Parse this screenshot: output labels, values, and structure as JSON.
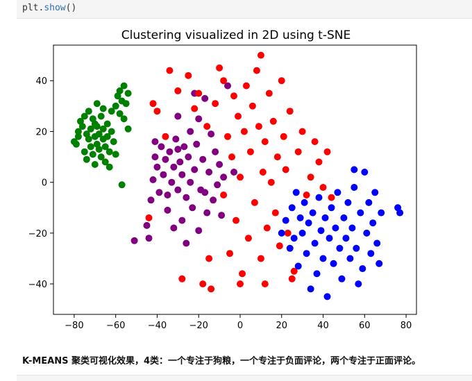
{
  "code_cell": {
    "obj": "plt",
    "dot": ".",
    "fn": "show",
    "parens": "()"
  },
  "markdown": {
    "text": "K-MEANS 聚类可视化效果，4类：一个专注于狗粮，一个专注于负面评论，两个专注于正面评论。"
  },
  "chart_data": {
    "type": "scatter",
    "title": "Clustering visualized in 2D using t-SNE",
    "xlabel": "",
    "ylabel": "",
    "xlim": [
      -90,
      85
    ],
    "ylim": [
      -52,
      54
    ],
    "xticks": [
      -80,
      -60,
      -40,
      -20,
      0,
      20,
      40,
      60,
      80
    ],
    "yticks": [
      -40,
      -20,
      0,
      20,
      40
    ],
    "xtick_labels": [
      "−80",
      "−60",
      "−40",
      "−20",
      "0",
      "20",
      "40",
      "60",
      "80"
    ],
    "ytick_labels": [
      "−40",
      "−20",
      "0",
      "20",
      "40"
    ],
    "grid": false,
    "legend": "none",
    "series": [
      {
        "color": "#008000",
        "points": [
          [
            -80,
            16
          ],
          [
            -79,
            15
          ],
          [
            -78,
            18
          ],
          [
            -77,
            24
          ],
          [
            -76,
            22
          ],
          [
            -75,
            12
          ],
          [
            -74,
            9
          ],
          [
            -74,
            19
          ],
          [
            -73,
            17
          ],
          [
            -73,
            28
          ],
          [
            -72,
            14
          ],
          [
            -72,
            21
          ],
          [
            -71,
            11
          ],
          [
            -71,
            25
          ],
          [
            -70,
            18
          ],
          [
            -70,
            7
          ],
          [
            -69,
            15
          ],
          [
            -69,
            22
          ],
          [
            -68,
            13
          ],
          [
            -68,
            19
          ],
          [
            -67,
            26
          ],
          [
            -67,
            10
          ],
          [
            -66,
            17
          ],
          [
            -66,
            21
          ],
          [
            -65,
            8
          ],
          [
            -65,
            14
          ],
          [
            -64,
            23
          ],
          [
            -64,
            18
          ],
          [
            -63,
            12
          ],
          [
            -62,
            20
          ],
          [
            -62,
            28
          ],
          [
            -61,
            16
          ],
          [
            -60,
            30
          ],
          [
            -60,
            11
          ],
          [
            -59,
            34
          ],
          [
            -58,
            27
          ],
          [
            -58,
            36
          ],
          [
            -57,
            32
          ],
          [
            -56,
            38
          ],
          [
            -55,
            31
          ],
          [
            -54,
            35
          ],
          [
            -54,
            21
          ],
          [
            -56,
            25
          ],
          [
            -57,
            -1
          ],
          [
            -75,
            26
          ],
          [
            -78,
            20
          ],
          [
            -69,
            31
          ],
          [
            -63,
            6
          ],
          [
            -66,
            29
          ],
          [
            -70,
            23
          ]
        ]
      },
      {
        "color": "#800080",
        "points": [
          [
            -51,
            -23
          ],
          [
            -45,
            -17
          ],
          [
            -44,
            -22
          ],
          [
            -43,
            -7
          ],
          [
            -42,
            1
          ],
          [
            -41,
            10
          ],
          [
            -40,
            6
          ],
          [
            -39,
            -4
          ],
          [
            -38,
            14
          ],
          [
            -37,
            3
          ],
          [
            -36,
            9
          ],
          [
            -35,
            -11
          ],
          [
            -34,
            12
          ],
          [
            -33,
            0
          ],
          [
            -32,
            6
          ],
          [
            -31,
            17
          ],
          [
            -30,
            -3
          ],
          [
            -30,
            26
          ],
          [
            -29,
            8
          ],
          [
            -28,
            3
          ],
          [
            -28,
            -15
          ],
          [
            -27,
            14
          ],
          [
            -26,
            -6
          ],
          [
            -25,
            10
          ],
          [
            -24,
            20
          ],
          [
            -24,
            0
          ],
          [
            -23,
            -10
          ],
          [
            -22,
            5
          ],
          [
            -21,
            15
          ],
          [
            -20,
            -19
          ],
          [
            -20,
            25
          ],
          [
            -19,
            -3
          ],
          [
            -18,
            9
          ],
          [
            -17,
            33
          ],
          [
            -16,
            -12
          ],
          [
            -15,
            4
          ],
          [
            -14,
            19
          ],
          [
            -13,
            -7
          ],
          [
            -12,
            12
          ],
          [
            -11,
            -1
          ],
          [
            -10,
            7
          ],
          [
            -9,
            -13
          ],
          [
            -8,
            2
          ],
          [
            -22,
            35
          ],
          [
            -26,
            -24
          ],
          [
            -35,
            -5
          ],
          [
            -41,
            16
          ],
          [
            -32,
            -18
          ],
          [
            -6,
            38
          ],
          [
            -3,
            4
          ],
          [
            -17,
            -4
          ],
          [
            -30,
            13
          ]
        ]
      },
      {
        "color": "#ff0000",
        "points": [
          [
            -42,
            31
          ],
          [
            -40,
            28
          ],
          [
            -36,
            18
          ],
          [
            -34,
            44
          ],
          [
            -30,
            36
          ],
          [
            -25,
            42
          ],
          [
            -22,
            29
          ],
          [
            -20,
            35
          ],
          [
            -18,
            -40
          ],
          [
            -16,
            22
          ],
          [
            -14,
            -42
          ],
          [
            -12,
            31
          ],
          [
            -10,
            45
          ],
          [
            -8,
            -5
          ],
          [
            -8,
            40
          ],
          [
            -6,
            18
          ],
          [
            -5,
            -28
          ],
          [
            -4,
            10
          ],
          [
            -3,
            34
          ],
          [
            -2,
            -15
          ],
          [
            -1,
            26
          ],
          [
            0,
            2
          ],
          [
            1,
            -36
          ],
          [
            2,
            20
          ],
          [
            3,
            38
          ],
          [
            4,
            -22
          ],
          [
            5,
            12
          ],
          [
            6,
            30
          ],
          [
            7,
            -8
          ],
          [
            8,
            44
          ],
          [
            9,
            22
          ],
          [
            10,
            -30
          ],
          [
            11,
            4
          ],
          [
            12,
            16
          ],
          [
            13,
            -18
          ],
          [
            14,
            35
          ],
          [
            15,
            0
          ],
          [
            16,
            24
          ],
          [
            17,
            -12
          ],
          [
            18,
            10
          ],
          [
            19,
            -25
          ],
          [
            20,
            40
          ],
          [
            21,
            18
          ],
          [
            22,
            5
          ],
          [
            23,
            -20
          ],
          [
            24,
            28
          ],
          [
            26,
            -35
          ],
          [
            28,
            12
          ],
          [
            30,
            20
          ],
          [
            32,
            -5
          ],
          [
            34,
            2
          ],
          [
            36,
            16
          ],
          [
            38,
            8
          ],
          [
            40,
            -2
          ],
          [
            42,
            12
          ],
          [
            44,
            -6
          ],
          [
            10,
            50
          ],
          [
            -28,
            -38
          ],
          [
            -44,
            -14
          ],
          [
            -15,
            -30
          ],
          [
            0,
            -40
          ],
          [
            12,
            -40
          ],
          [
            25,
            -38
          ]
        ]
      },
      {
        "color": "#0000ff",
        "points": [
          [
            20,
            -20
          ],
          [
            22,
            -15
          ],
          [
            24,
            -26
          ],
          [
            25,
            -10
          ],
          [
            26,
            -22
          ],
          [
            27,
            -4
          ],
          [
            28,
            -33
          ],
          [
            29,
            -14
          ],
          [
            30,
            -20
          ],
          [
            31,
            -8
          ],
          [
            32,
            -28
          ],
          [
            33,
            -16
          ],
          [
            34,
            -42
          ],
          [
            35,
            -12
          ],
          [
            36,
            -24
          ],
          [
            37,
            -36
          ],
          [
            38,
            -6
          ],
          [
            39,
            -19
          ],
          [
            40,
            -30
          ],
          [
            41,
            -14
          ],
          [
            42,
            -45
          ],
          [
            43,
            -22
          ],
          [
            44,
            -10
          ],
          [
            45,
            -32
          ],
          [
            46,
            -18
          ],
          [
            47,
            -4
          ],
          [
            48,
            -26
          ],
          [
            49,
            -38
          ],
          [
            50,
            -14
          ],
          [
            51,
            -22
          ],
          [
            52,
            -8
          ],
          [
            53,
            -30
          ],
          [
            54,
            -18
          ],
          [
            55,
            -2
          ],
          [
            56,
            -26
          ],
          [
            57,
            -40
          ],
          [
            58,
            -12
          ],
          [
            59,
            -34
          ],
          [
            60,
            4
          ],
          [
            61,
            -20
          ],
          [
            62,
            -8
          ],
          [
            63,
            -28
          ],
          [
            64,
            -16
          ],
          [
            65,
            -4
          ],
          [
            66,
            -24
          ],
          [
            67,
            -32
          ],
          [
            68,
            -12
          ],
          [
            76,
            -10
          ],
          [
            77,
            -12
          ],
          [
            55,
            5
          ]
        ]
      }
    ]
  }
}
